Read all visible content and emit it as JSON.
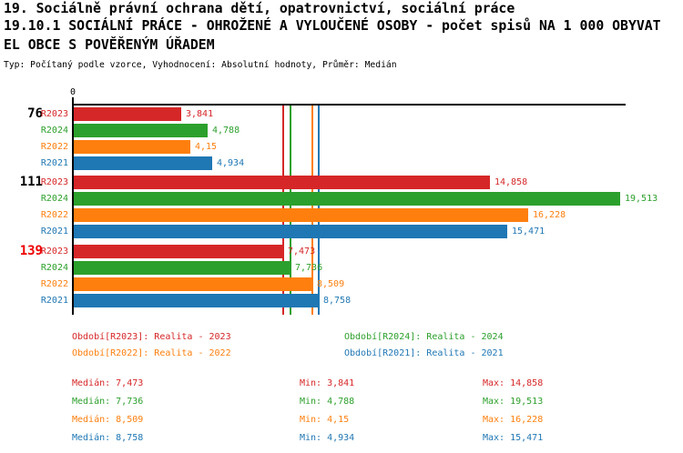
{
  "header": {
    "title_line1": "19. Sociálně právní ochrana dětí, opatrovnictví, sociální práce",
    "title_line2": "19.10.1 SOCIÁLNÍ PRÁCE - OHROŽENÉ A VYLOUČENÉ OSOBY - počet spisů NA 1 000 OBYVAT",
    "title_line3": "EL OBCE S POVĚŘENÝM ÚŘADEM",
    "subtitle": "Typ: Počítaný podle vzorce, Vyhodnocení: Absolutní hodnoty, Průměr: Medián"
  },
  "colors": {
    "series": {
      "R2023": "#d62728",
      "R2024": "#2ca02c",
      "R2022": "#ff7f0e",
      "R2021": "#1f77b4"
    },
    "axis": "#000000",
    "group_label_default": "#000000",
    "group_label_highlight": "#ee0000"
  },
  "chart_data": {
    "type": "bar",
    "orientation": "horizontal",
    "value_axis": {
      "origin_label": "0",
      "min": 0,
      "max_approx": 19.8,
      "gridlines": false
    },
    "series_order": [
      "R2023",
      "R2024",
      "R2022",
      "R2021"
    ],
    "groups": [
      {
        "label": "76",
        "highlight": false,
        "bars": [
          {
            "series": "R2023",
            "value": 3.841,
            "display": "3,841"
          },
          {
            "series": "R2024",
            "value": 4.788,
            "display": "4,788"
          },
          {
            "series": "R2022",
            "value": 4.15,
            "display": "4,15"
          },
          {
            "series": "R2021",
            "value": 4.934,
            "display": "4,934"
          }
        ]
      },
      {
        "label": "111",
        "highlight": false,
        "bars": [
          {
            "series": "R2023",
            "value": 14.858,
            "display": "14,858"
          },
          {
            "series": "R2024",
            "value": 19.513,
            "display": "19,513"
          },
          {
            "series": "R2022",
            "value": 16.228,
            "display": "16,228"
          },
          {
            "series": "R2021",
            "value": 15.471,
            "display": "15,471"
          }
        ]
      },
      {
        "label": "139",
        "highlight": true,
        "bars": [
          {
            "series": "R2023",
            "value": 7.473,
            "display": "7,473"
          },
          {
            "series": "R2024",
            "value": 7.736,
            "display": "7,736"
          },
          {
            "series": "R2022",
            "value": 8.509,
            "display": "8,509"
          },
          {
            "series": "R2021",
            "value": 8.758,
            "display": "8,758"
          }
        ]
      }
    ],
    "median_lines": [
      {
        "series": "R2023",
        "value": 7.473
      },
      {
        "series": "R2024",
        "value": 7.736
      },
      {
        "series": "R2022",
        "value": 8.509
      },
      {
        "series": "R2021",
        "value": 8.758
      }
    ]
  },
  "legend": [
    {
      "series": "R2023",
      "label": "Období[R2023]: Realita - 2023"
    },
    {
      "series": "R2024",
      "label": "Období[R2024]: Realita - 2024"
    },
    {
      "series": "R2022",
      "label": "Období[R2022]: Realita - 2022"
    },
    {
      "series": "R2021",
      "label": "Období[R2021]: Realita - 2021"
    }
  ],
  "stats": {
    "labels": {
      "median": "Medián",
      "min": "Min",
      "max": "Max"
    },
    "rows": [
      {
        "series": "R2023",
        "median": "7,473",
        "min": "3,841",
        "max": "14,858"
      },
      {
        "series": "R2024",
        "median": "7,736",
        "min": "4,788",
        "max": "19,513"
      },
      {
        "series": "R2022",
        "median": "8,509",
        "min": "4,15",
        "max": "16,228"
      },
      {
        "series": "R2021",
        "median": "8,758",
        "min": "4,934",
        "max": "15,471"
      }
    ]
  }
}
